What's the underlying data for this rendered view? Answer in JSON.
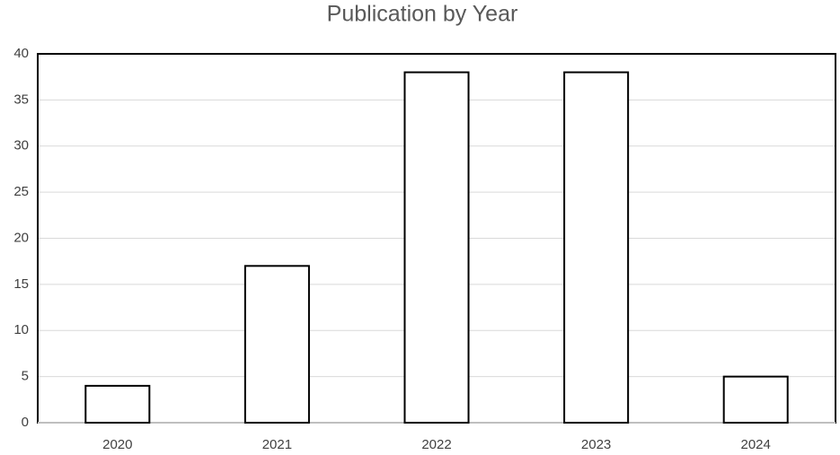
{
  "chart_data": {
    "type": "bar",
    "title": "Publication by Year",
    "categories": [
      "2020",
      "2021",
      "2022",
      "2023",
      "2024"
    ],
    "values": [
      4,
      17,
      38,
      38,
      5
    ],
    "color": "#ffffff",
    "edge_color": "#000000",
    "ylim": [
      0,
      40
    ],
    "yticks": [
      0,
      5,
      10,
      15,
      20,
      25,
      30,
      35,
      40
    ],
    "grid": true
  }
}
